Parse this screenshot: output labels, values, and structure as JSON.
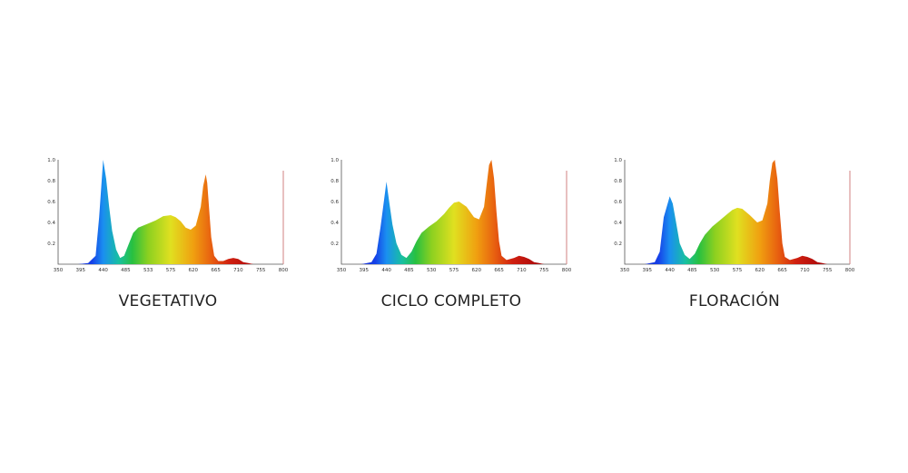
{
  "chart_data": [
    {
      "type": "area",
      "title": "VEGETATIVO",
      "x_ticks": [
        "350",
        "395",
        "440",
        "485",
        "533",
        "575",
        "620",
        "665",
        "710",
        "755",
        "800"
      ],
      "y_ticks": [
        "0.2",
        "0.4",
        "0.6",
        "0.8",
        "1.0"
      ],
      "xlim": [
        350,
        800
      ],
      "ylim": [
        0,
        1.0
      ],
      "series": [
        {
          "x": [
            350,
            390,
            410,
            425,
            432,
            440,
            446,
            452,
            458,
            466,
            474,
            482,
            490,
            500,
            510,
            520,
            530,
            545,
            560,
            575,
            585,
            595,
            605,
            615,
            625,
            635,
            640,
            645,
            648,
            652,
            656,
            662,
            670,
            680,
            690,
            700,
            710,
            720,
            730,
            740,
            750,
            800
          ],
          "y": [
            0,
            0,
            0.01,
            0.08,
            0.45,
            1.0,
            0.82,
            0.55,
            0.32,
            0.14,
            0.06,
            0.08,
            0.18,
            0.3,
            0.35,
            0.37,
            0.39,
            0.42,
            0.46,
            0.47,
            0.45,
            0.41,
            0.35,
            0.33,
            0.37,
            0.55,
            0.75,
            0.86,
            0.78,
            0.52,
            0.26,
            0.08,
            0.03,
            0.03,
            0.05,
            0.06,
            0.05,
            0.02,
            0.01,
            0,
            0,
            0
          ]
        }
      ]
    },
    {
      "type": "area",
      "title": "CICLO COMPLETO",
      "x_ticks": [
        "350",
        "395",
        "440",
        "485",
        "530",
        "575",
        "620",
        "665",
        "710",
        "755",
        "800"
      ],
      "y_ticks": [
        "0.2",
        "0.4",
        "0.6",
        "0.8",
        "1.0"
      ],
      "xlim": [
        350,
        800
      ],
      "ylim": [
        0,
        1.0
      ],
      "series": [
        {
          "x": [
            350,
            390,
            410,
            420,
            428,
            440,
            446,
            452,
            460,
            470,
            480,
            490,
            500,
            510,
            525,
            540,
            555,
            565,
            575,
            585,
            600,
            615,
            625,
            635,
            640,
            645,
            650,
            655,
            660,
            665,
            670,
            680,
            695,
            705,
            715,
            725,
            735,
            745,
            755,
            800
          ],
          "y": [
            0,
            0,
            0.02,
            0.1,
            0.35,
            0.79,
            0.58,
            0.38,
            0.2,
            0.09,
            0.06,
            0.12,
            0.22,
            0.3,
            0.36,
            0.41,
            0.48,
            0.54,
            0.59,
            0.6,
            0.55,
            0.45,
            0.43,
            0.55,
            0.75,
            0.95,
            1.0,
            0.82,
            0.5,
            0.22,
            0.08,
            0.04,
            0.06,
            0.08,
            0.07,
            0.05,
            0.02,
            0.01,
            0,
            0
          ]
        }
      ]
    },
    {
      "type": "area",
      "title": "FLORACIÓN",
      "x_ticks": [
        "350",
        "395",
        "440",
        "485",
        "530",
        "575",
        "620",
        "665",
        "710",
        "755",
        "800"
      ],
      "y_ticks": [
        "0.2",
        "0.4",
        "0.6",
        "0.8",
        "1.0"
      ],
      "xlim": [
        350,
        800
      ],
      "ylim": [
        0,
        1.0
      ],
      "series": [
        {
          "x": [
            350,
            390,
            410,
            420,
            428,
            440,
            446,
            452,
            460,
            470,
            480,
            490,
            500,
            510,
            525,
            540,
            555,
            565,
            575,
            585,
            600,
            615,
            625,
            635,
            640,
            645,
            650,
            655,
            660,
            665,
            670,
            680,
            695,
            705,
            715,
            725,
            735,
            745,
            755,
            800
          ],
          "y": [
            0,
            0,
            0.02,
            0.12,
            0.45,
            0.65,
            0.58,
            0.42,
            0.2,
            0.09,
            0.05,
            0.1,
            0.2,
            0.28,
            0.36,
            0.42,
            0.48,
            0.52,
            0.54,
            0.53,
            0.47,
            0.4,
            0.42,
            0.58,
            0.8,
            0.97,
            1.0,
            0.82,
            0.5,
            0.2,
            0.07,
            0.04,
            0.06,
            0.08,
            0.07,
            0.05,
            0.02,
            0.01,
            0,
            0
          ]
        }
      ]
    }
  ],
  "colors": {
    "spectrum": [
      "#1a1aa8",
      "#1640e8",
      "#1a8ff0",
      "#18c0a0",
      "#28c040",
      "#8cd020",
      "#e0e020",
      "#f0a010",
      "#e86010",
      "#d02010",
      "#b00c0c",
      "#600a0a"
    ],
    "axis": "#555555",
    "marker_line": "#d08080"
  }
}
